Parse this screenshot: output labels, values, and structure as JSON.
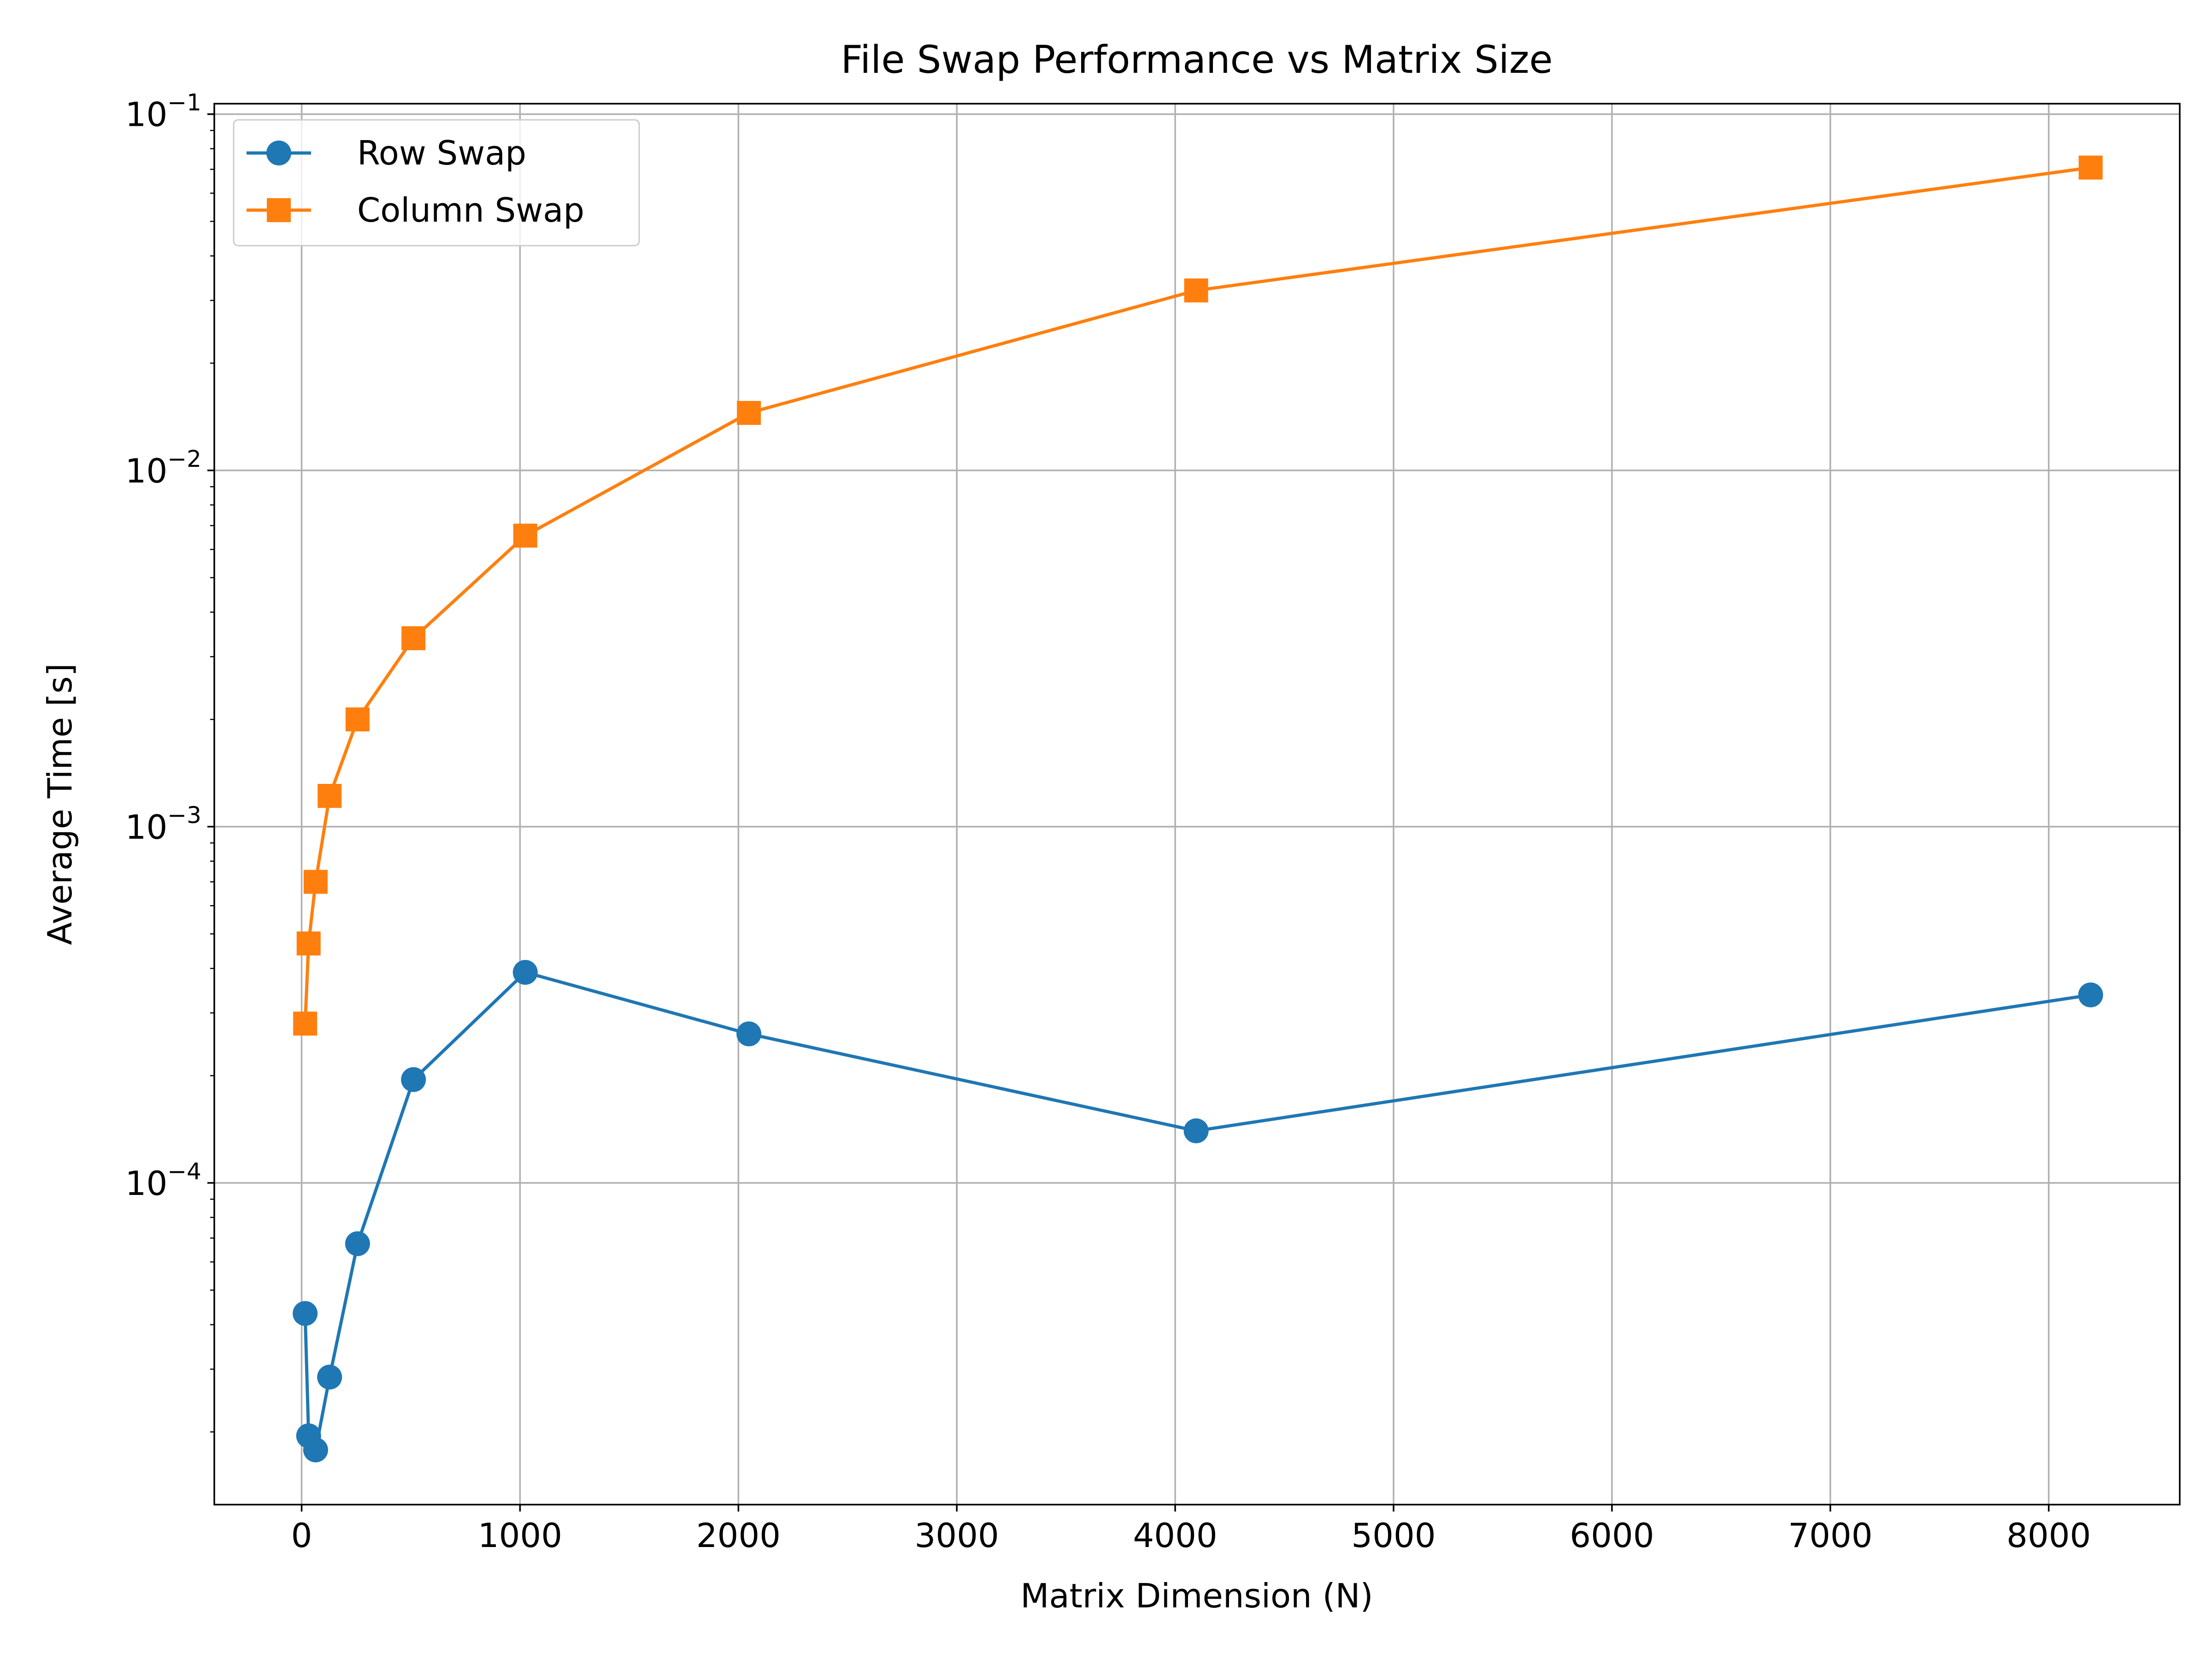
{
  "chart_data": {
    "type": "line",
    "title": "File Swap Performance vs Matrix Size",
    "xlabel": "Matrix Dimension (N)",
    "ylabel": "Average Time [s]",
    "xscale": "linear",
    "yscale": "log",
    "xlim": [
      -400,
      8600
    ],
    "ylim": [
      1.25e-05,
      0.107
    ],
    "xticks": [
      {
        "value": 0,
        "label": "0"
      },
      {
        "value": 1000,
        "label": "1000"
      },
      {
        "value": 2000,
        "label": "2000"
      },
      {
        "value": 3000,
        "label": "3000"
      },
      {
        "value": 4000,
        "label": "4000"
      },
      {
        "value": 5000,
        "label": "5000"
      },
      {
        "value": 6000,
        "label": "6000"
      },
      {
        "value": 7000,
        "label": "7000"
      },
      {
        "value": 8000,
        "label": "8000"
      }
    ],
    "yticks": [
      {
        "value": 0.0001,
        "base": "10",
        "exp": "−4"
      },
      {
        "value": 0.001,
        "base": "10",
        "exp": "−3"
      },
      {
        "value": 0.01,
        "base": "10",
        "exp": "−2"
      },
      {
        "value": 0.1,
        "base": "10",
        "exp": "−1"
      }
    ],
    "grid": true,
    "legend": "upper-left",
    "series": [
      {
        "name": "Row Swap",
        "color": "#1f77b4",
        "marker": "circle",
        "x": [
          16,
          32,
          64,
          128,
          256,
          512,
          1024,
          2048,
          4096,
          8192
        ],
        "y": [
          4.3e-05,
          1.95e-05,
          1.78e-05,
          2.85e-05,
          6.75e-05,
          0.000195,
          0.00039,
          0.000262,
          0.00014,
          0.000337
        ]
      },
      {
        "name": "Column Swap",
        "color": "#ff7f0e",
        "marker": "square",
        "x": [
          16,
          32,
          64,
          128,
          256,
          512,
          1024,
          2048,
          4096,
          8192
        ],
        "y": [
          0.00028,
          0.00047,
          0.0007,
          0.00122,
          0.002,
          0.00338,
          0.00656,
          0.0145,
          0.032,
          0.0708
        ]
      }
    ]
  }
}
